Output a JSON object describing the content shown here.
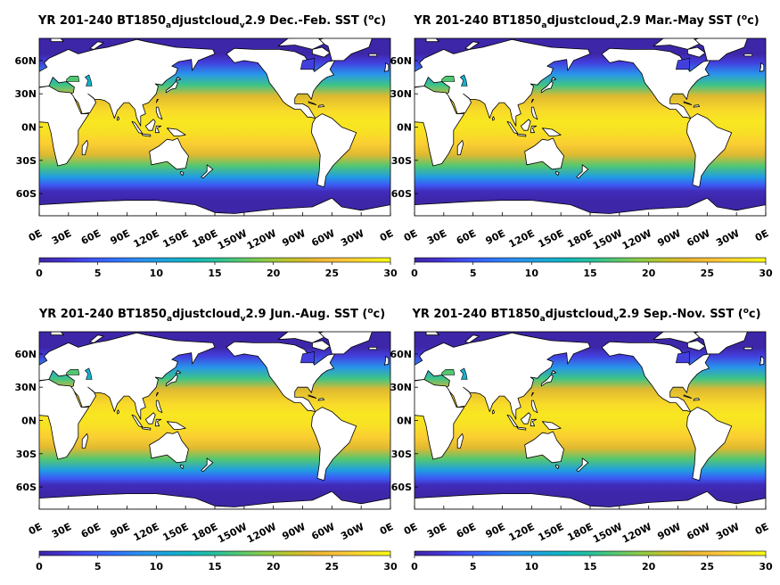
{
  "figure": {
    "colormap": [
      "#3e26a8",
      "#4433d0",
      "#4150f3",
      "#3171fd",
      "#2b8ef0",
      "#1ba5db",
      "#12b6c0",
      "#27c09c",
      "#55c86f",
      "#8bca47",
      "#c1c32c",
      "#eab631",
      "#fcc43b",
      "#f8de26",
      "#f9fb15"
    ],
    "land_color": "#ffffff",
    "coastline_color": "#000000"
  },
  "chart_data": [
    {
      "type": "heatmap",
      "title": {
        "prefix": "YR 201-240 BT1850",
        "sub1": "a",
        "mid": "djustcloud",
        "sub2": "v",
        "suffix": "2.9 Dec.-Feb. SST (",
        "sup": "o",
        "end": "c)"
      },
      "season": "Dec.-Feb.",
      "variable": "SST",
      "unit": "°C",
      "xticks": [
        "0E",
        "30E",
        "60E",
        "90E",
        "120E",
        "150E",
        "180E",
        "150W",
        "120W",
        "90W",
        "60W",
        "30W",
        "0E"
      ],
      "yticks": [
        "60N",
        "30N",
        "0N",
        "30S",
        "60S"
      ],
      "xlim": [
        0,
        360
      ],
      "ylim": [
        -80,
        80
      ],
      "colorbar": {
        "ticks": [
          "0",
          "5",
          "10",
          "15",
          "20",
          "25",
          "30"
        ],
        "clim": [
          0,
          30
        ]
      }
    },
    {
      "type": "heatmap",
      "title": {
        "prefix": "YR 201-240 BT1850",
        "sub1": "a",
        "mid": "djustcloud",
        "sub2": "v",
        "suffix": "2.9 Mar.-May SST (",
        "sup": "o",
        "end": "c)"
      },
      "season": "Mar.-May",
      "variable": "SST",
      "unit": "°C",
      "xticks": [
        "0E",
        "30E",
        "60E",
        "90E",
        "120E",
        "150E",
        "180E",
        "150W",
        "120W",
        "90W",
        "60W",
        "30W",
        "0E"
      ],
      "yticks": [
        "60N",
        "30N",
        "0N",
        "30S",
        "60S"
      ],
      "xlim": [
        0,
        360
      ],
      "ylim": [
        -80,
        80
      ],
      "colorbar": {
        "ticks": [
          "0",
          "5",
          "10",
          "15",
          "20",
          "25",
          "30"
        ],
        "clim": [
          0,
          30
        ]
      }
    },
    {
      "type": "heatmap",
      "title": {
        "prefix": "YR 201-240 BT1850",
        "sub1": "a",
        "mid": "djustcloud",
        "sub2": "v",
        "suffix": "2.9 Jun.-Aug. SST (",
        "sup": "o",
        "end": "c)"
      },
      "season": "Jun.-Aug.",
      "variable": "SST",
      "unit": "°C",
      "xticks": [
        "0E",
        "30E",
        "60E",
        "90E",
        "120E",
        "150E",
        "180E",
        "150W",
        "120W",
        "90W",
        "60W",
        "30W",
        "0E"
      ],
      "yticks": [
        "60N",
        "30N",
        "0N",
        "30S",
        "60S"
      ],
      "xlim": [
        0,
        360
      ],
      "ylim": [
        -80,
        80
      ],
      "colorbar": {
        "ticks": [
          "0",
          "5",
          "10",
          "15",
          "20",
          "25",
          "30"
        ],
        "clim": [
          0,
          30
        ]
      }
    },
    {
      "type": "heatmap",
      "title": {
        "prefix": "YR 201-240 BT1850",
        "sub1": "a",
        "mid": "djustcloud",
        "sub2": "v",
        "suffix": "2.9 Sep.-Nov. SST (",
        "sup": "o",
        "end": "c)"
      },
      "season": "Sep.-Nov.",
      "variable": "SST",
      "unit": "°C",
      "xticks": [
        "0E",
        "30E",
        "60E",
        "90E",
        "120E",
        "150E",
        "180E",
        "150W",
        "120W",
        "90W",
        "60W",
        "30W",
        "0E"
      ],
      "yticks": [
        "60N",
        "30N",
        "0N",
        "30S",
        "60S"
      ],
      "xlim": [
        0,
        360
      ],
      "ylim": [
        -80,
        80
      ],
      "colorbar": {
        "ticks": [
          "0",
          "5",
          "10",
          "15",
          "20",
          "25",
          "30"
        ],
        "clim": [
          0,
          30
        ]
      }
    }
  ]
}
